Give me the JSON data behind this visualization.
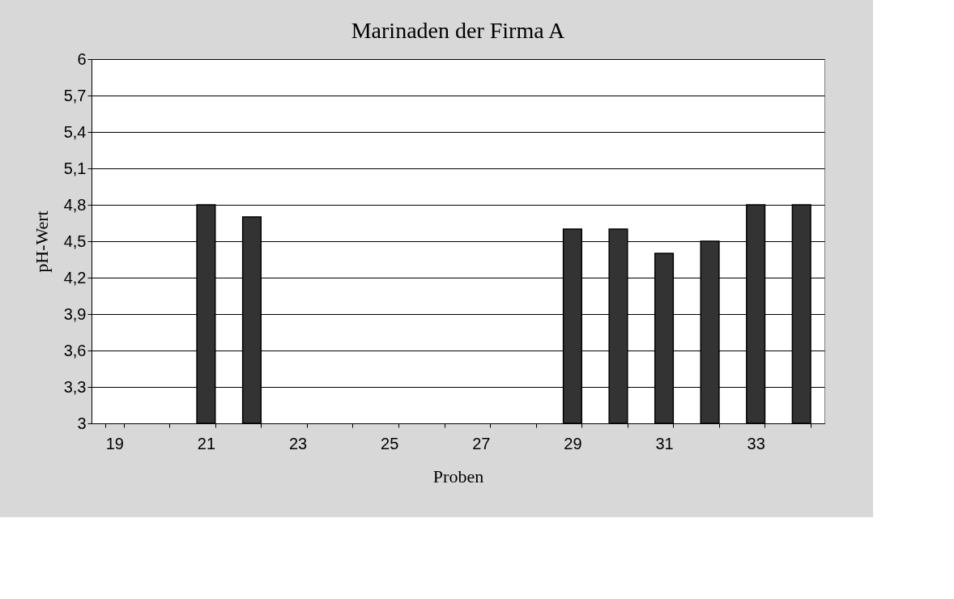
{
  "chart_data": {
    "type": "bar",
    "title": "Marinaden der Firma A",
    "xlabel": "Proben",
    "ylabel": "pH-Wert",
    "categories": [
      "19",
      null,
      "21",
      null,
      "23",
      null,
      "25",
      null,
      "27",
      null,
      "29",
      null,
      "31",
      null,
      "33",
      null
    ],
    "values": [
      null,
      null,
      4.8,
      4.7,
      null,
      null,
      null,
      null,
      null,
      null,
      4.6,
      4.6,
      4.4,
      4.5,
      4.8,
      4.8
    ],
    "color": "#333333",
    "ylim": [
      3,
      6
    ],
    "yticks": [
      3,
      {
        "value": 3.3,
        "label": "3,3"
      },
      {
        "value": 3.6,
        "label": "3,6"
      },
      {
        "value": 3.9,
        "label": "3,9"
      },
      {
        "value": 4.2,
        "label": "4,2"
      },
      {
        "value": 4.5,
        "label": "4,5"
      },
      {
        "value": 4.8,
        "label": "4,8"
      },
      {
        "value": 5.1,
        "label": "5,1"
      },
      {
        "value": 5.4,
        "label": "5,4"
      },
      {
        "value": 5.7,
        "label": "5,7"
      },
      6
    ],
    "grid": "y"
  }
}
